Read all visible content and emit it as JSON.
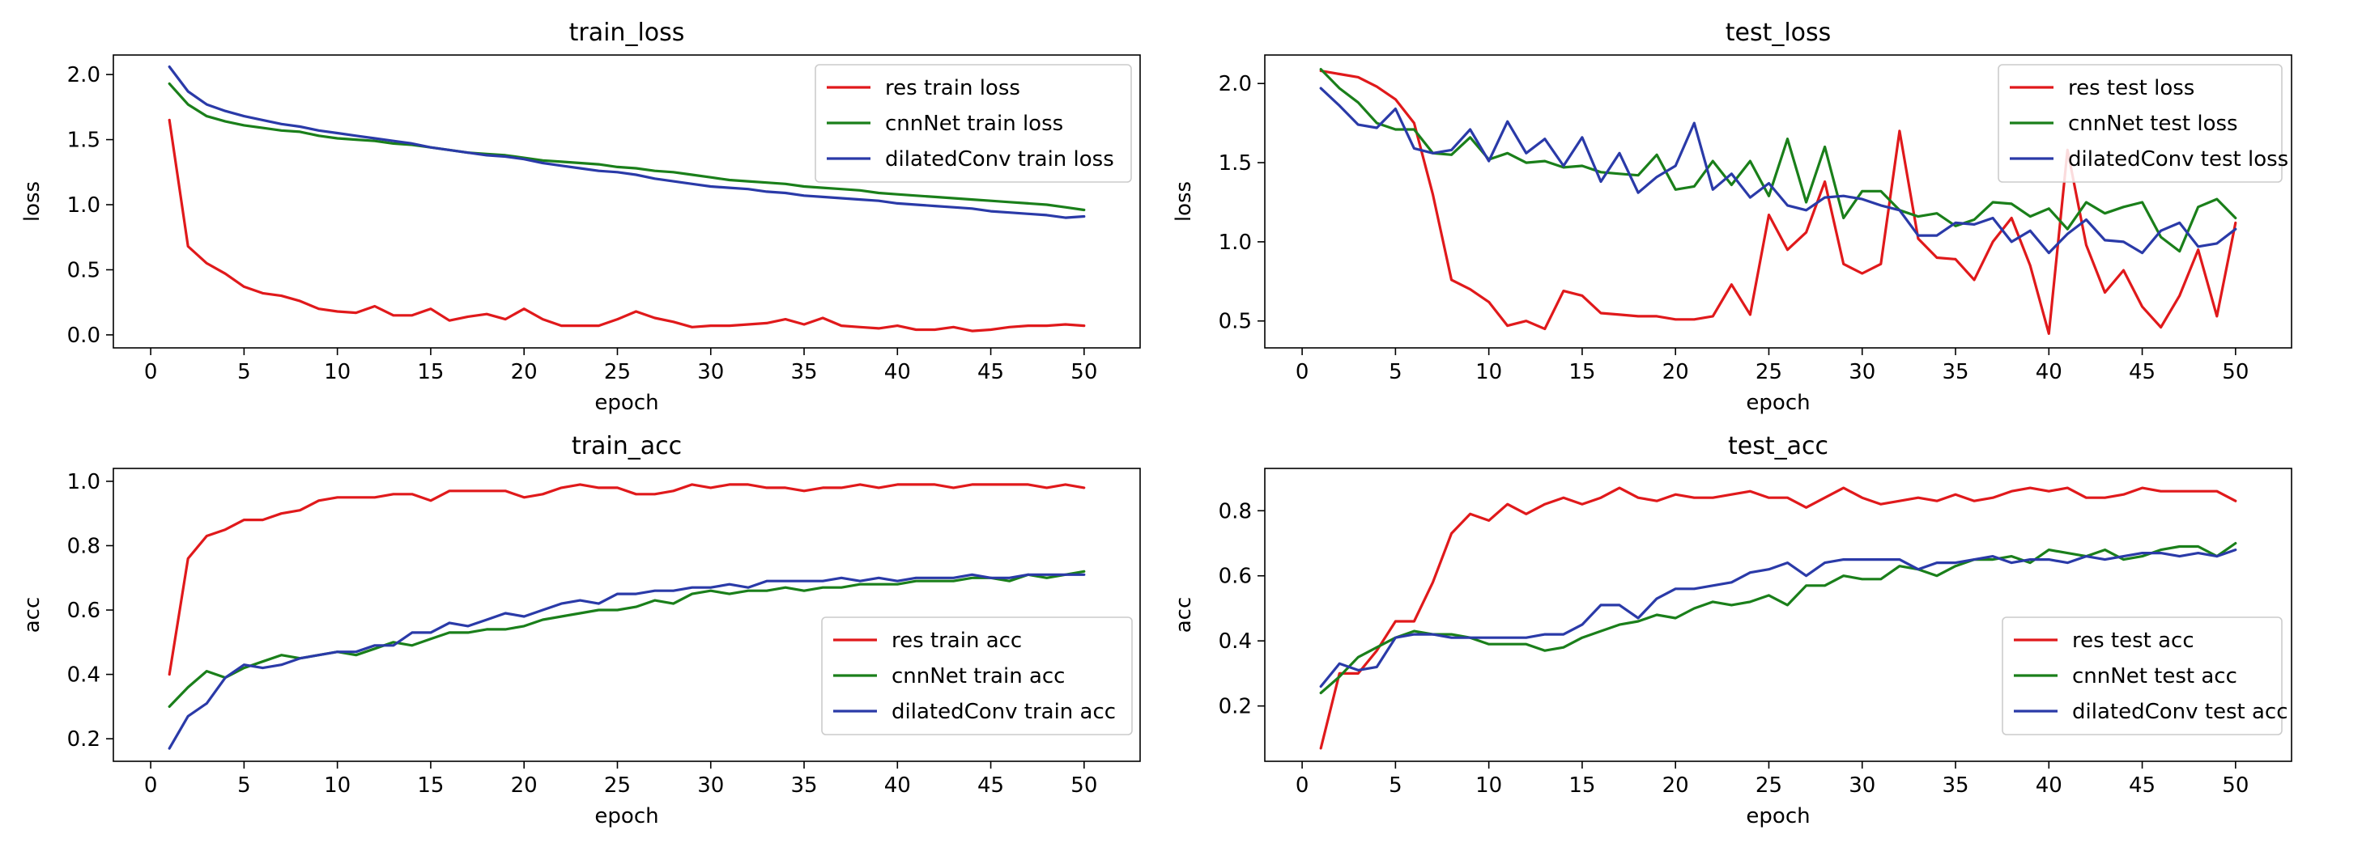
{
  "figure": {
    "panels": [
      "train_loss",
      "test_loss",
      "train_acc",
      "test_acc"
    ]
  },
  "colors": {
    "res": "#e0191b",
    "cnnNet": "#1a7f1a",
    "dilatedConv": "#2a3aa8",
    "axes": "#000000",
    "legend_border": "#cccccc"
  },
  "chart_data": [
    {
      "id": "train_loss",
      "type": "line",
      "title": "train_loss",
      "xlabel": "epoch",
      "ylabel": "loss",
      "xlim": [
        -2.0,
        53.0
      ],
      "ylim": [
        -0.1,
        2.15
      ],
      "xticks": [
        0,
        5,
        10,
        15,
        20,
        25,
        30,
        35,
        40,
        45,
        50
      ],
      "yticks": [
        0.0,
        0.5,
        1.0,
        1.5,
        2.0
      ],
      "ytick_labels": [
        "0.0",
        "0.5",
        "1.0",
        "1.5",
        "2.0"
      ],
      "grid": false,
      "legend_position": "upper right",
      "x": [
        1,
        2,
        3,
        4,
        5,
        6,
        7,
        8,
        9,
        10,
        11,
        12,
        13,
        14,
        15,
        16,
        17,
        18,
        19,
        20,
        21,
        22,
        23,
        24,
        25,
        26,
        27,
        28,
        29,
        30,
        31,
        32,
        33,
        34,
        35,
        36,
        37,
        38,
        39,
        40,
        41,
        42,
        43,
        44,
        45,
        46,
        47,
        48,
        49,
        50
      ],
      "series": [
        {
          "name": "res train loss",
          "color_key": "res",
          "values": [
            1.65,
            0.68,
            0.55,
            0.47,
            0.37,
            0.32,
            0.3,
            0.26,
            0.2,
            0.18,
            0.17,
            0.22,
            0.15,
            0.15,
            0.2,
            0.11,
            0.14,
            0.16,
            0.12,
            0.2,
            0.12,
            0.07,
            0.07,
            0.07,
            0.12,
            0.18,
            0.13,
            0.1,
            0.06,
            0.07,
            0.07,
            0.08,
            0.09,
            0.12,
            0.08,
            0.13,
            0.07,
            0.06,
            0.05,
            0.07,
            0.04,
            0.04,
            0.06,
            0.03,
            0.04,
            0.06,
            0.07,
            0.07,
            0.08,
            0.07
          ]
        },
        {
          "name": "cnnNet train loss",
          "color_key": "cnnNet",
          "values": [
            1.93,
            1.77,
            1.68,
            1.64,
            1.61,
            1.59,
            1.57,
            1.56,
            1.53,
            1.51,
            1.5,
            1.49,
            1.47,
            1.46,
            1.44,
            1.42,
            1.4,
            1.39,
            1.38,
            1.36,
            1.34,
            1.33,
            1.32,
            1.31,
            1.29,
            1.28,
            1.26,
            1.25,
            1.23,
            1.21,
            1.19,
            1.18,
            1.17,
            1.16,
            1.14,
            1.13,
            1.12,
            1.11,
            1.09,
            1.08,
            1.07,
            1.06,
            1.05,
            1.04,
            1.03,
            1.02,
            1.01,
            1.0,
            0.98,
            0.96
          ]
        },
        {
          "name": "dilatedConv train loss",
          "color_key": "dilatedConv",
          "values": [
            2.06,
            1.87,
            1.77,
            1.72,
            1.68,
            1.65,
            1.62,
            1.6,
            1.57,
            1.55,
            1.53,
            1.51,
            1.49,
            1.47,
            1.44,
            1.42,
            1.4,
            1.38,
            1.37,
            1.35,
            1.32,
            1.3,
            1.28,
            1.26,
            1.25,
            1.23,
            1.2,
            1.18,
            1.16,
            1.14,
            1.13,
            1.12,
            1.1,
            1.09,
            1.07,
            1.06,
            1.05,
            1.04,
            1.03,
            1.01,
            1.0,
            0.99,
            0.98,
            0.97,
            0.95,
            0.94,
            0.93,
            0.92,
            0.9,
            0.91
          ]
        }
      ]
    },
    {
      "id": "test_loss",
      "type": "line",
      "title": "test_loss",
      "xlabel": "epoch",
      "ylabel": "loss",
      "xlim": [
        -2.0,
        53.0
      ],
      "ylim": [
        0.33,
        2.18
      ],
      "xticks": [
        0,
        5,
        10,
        15,
        20,
        25,
        30,
        35,
        40,
        45,
        50
      ],
      "yticks": [
        0.5,
        1.0,
        1.5,
        2.0
      ],
      "ytick_labels": [
        "0.5",
        "1.0",
        "1.5",
        "2.0"
      ],
      "grid": false,
      "legend_position": "upper right",
      "x": [
        1,
        2,
        3,
        4,
        5,
        6,
        7,
        8,
        9,
        10,
        11,
        12,
        13,
        14,
        15,
        16,
        17,
        18,
        19,
        20,
        21,
        22,
        23,
        24,
        25,
        26,
        27,
        28,
        29,
        30,
        31,
        32,
        33,
        34,
        35,
        36,
        37,
        38,
        39,
        40,
        41,
        42,
        43,
        44,
        45,
        46,
        47,
        48,
        49,
        50
      ],
      "series": [
        {
          "name": "res test loss",
          "color_key": "res",
          "values": [
            2.08,
            2.06,
            2.04,
            1.98,
            1.9,
            1.75,
            1.3,
            0.76,
            0.7,
            0.62,
            0.47,
            0.5,
            0.45,
            0.69,
            0.66,
            0.55,
            0.54,
            0.53,
            0.53,
            0.51,
            0.51,
            0.53,
            0.73,
            0.54,
            1.17,
            0.95,
            1.06,
            1.38,
            0.86,
            0.8,
            0.86,
            1.7,
            1.02,
            0.9,
            0.89,
            0.76,
            1.0,
            1.15,
            0.85,
            0.42,
            1.58,
            0.98,
            0.68,
            0.82,
            0.59,
            0.46,
            0.66,
            0.95,
            0.53,
            1.12
          ]
        },
        {
          "name": "cnnNet test loss",
          "color_key": "cnnNet",
          "values": [
            2.09,
            1.97,
            1.88,
            1.75,
            1.71,
            1.71,
            1.56,
            1.55,
            1.66,
            1.52,
            1.56,
            1.5,
            1.51,
            1.47,
            1.48,
            1.44,
            1.43,
            1.42,
            1.55,
            1.33,
            1.35,
            1.51,
            1.36,
            1.51,
            1.29,
            1.65,
            1.25,
            1.6,
            1.15,
            1.32,
            1.32,
            1.2,
            1.16,
            1.18,
            1.1,
            1.14,
            1.25,
            1.24,
            1.16,
            1.21,
            1.08,
            1.25,
            1.18,
            1.22,
            1.25,
            1.03,
            0.94,
            1.22,
            1.27,
            1.15
          ]
        },
        {
          "name": "dilatedConv test loss",
          "color_key": "dilatedConv",
          "values": [
            1.97,
            1.86,
            1.74,
            1.72,
            1.84,
            1.59,
            1.56,
            1.58,
            1.71,
            1.51,
            1.76,
            1.56,
            1.65,
            1.48,
            1.66,
            1.38,
            1.56,
            1.31,
            1.41,
            1.48,
            1.75,
            1.33,
            1.43,
            1.28,
            1.37,
            1.23,
            1.2,
            1.28,
            1.29,
            1.27,
            1.23,
            1.2,
            1.04,
            1.04,
            1.12,
            1.11,
            1.15,
            1.0,
            1.07,
            0.93,
            1.05,
            1.14,
            1.01,
            1.0,
            0.93,
            1.07,
            1.12,
            0.97,
            0.99,
            1.08
          ]
        }
      ]
    },
    {
      "id": "train_acc",
      "type": "line",
      "title": "train_acc",
      "xlabel": "epoch",
      "ylabel": "acc",
      "xlim": [
        -2.0,
        53.0
      ],
      "ylim": [
        0.13,
        1.04
      ],
      "xticks": [
        0,
        5,
        10,
        15,
        20,
        25,
        30,
        35,
        40,
        45,
        50
      ],
      "yticks": [
        0.2,
        0.4,
        0.6,
        0.8,
        1.0
      ],
      "ytick_labels": [
        "0.2",
        "0.4",
        "0.6",
        "0.8",
        "1.0"
      ],
      "grid": false,
      "legend_position": "lower right",
      "x": [
        1,
        2,
        3,
        4,
        5,
        6,
        7,
        8,
        9,
        10,
        11,
        12,
        13,
        14,
        15,
        16,
        17,
        18,
        19,
        20,
        21,
        22,
        23,
        24,
        25,
        26,
        27,
        28,
        29,
        30,
        31,
        32,
        33,
        34,
        35,
        36,
        37,
        38,
        39,
        40,
        41,
        42,
        43,
        44,
        45,
        46,
        47,
        48,
        49,
        50
      ],
      "series": [
        {
          "name": "res train acc",
          "color_key": "res",
          "values": [
            0.4,
            0.76,
            0.83,
            0.85,
            0.88,
            0.88,
            0.9,
            0.91,
            0.94,
            0.95,
            0.95,
            0.95,
            0.96,
            0.96,
            0.94,
            0.97,
            0.97,
            0.97,
            0.97,
            0.95,
            0.96,
            0.98,
            0.99,
            0.98,
            0.98,
            0.96,
            0.96,
            0.97,
            0.99,
            0.98,
            0.99,
            0.99,
            0.98,
            0.98,
            0.97,
            0.98,
            0.98,
            0.99,
            0.98,
            0.99,
            0.99,
            0.99,
            0.98,
            0.99,
            0.99,
            0.99,
            0.99,
            0.98,
            0.99,
            0.98
          ]
        },
        {
          "name": "cnnNet train acc",
          "color_key": "cnnNet",
          "values": [
            0.3,
            0.36,
            0.41,
            0.39,
            0.42,
            0.44,
            0.46,
            0.45,
            0.46,
            0.47,
            0.46,
            0.48,
            0.5,
            0.49,
            0.51,
            0.53,
            0.53,
            0.54,
            0.54,
            0.55,
            0.57,
            0.58,
            0.59,
            0.6,
            0.6,
            0.61,
            0.63,
            0.62,
            0.65,
            0.66,
            0.65,
            0.66,
            0.66,
            0.67,
            0.66,
            0.67,
            0.67,
            0.68,
            0.68,
            0.68,
            0.69,
            0.69,
            0.69,
            0.7,
            0.7,
            0.69,
            0.71,
            0.7,
            0.71,
            0.72
          ]
        },
        {
          "name": "dilatedConv train acc",
          "color_key": "dilatedConv",
          "values": [
            0.17,
            0.27,
            0.31,
            0.39,
            0.43,
            0.42,
            0.43,
            0.45,
            0.46,
            0.47,
            0.47,
            0.49,
            0.49,
            0.53,
            0.53,
            0.56,
            0.55,
            0.57,
            0.59,
            0.58,
            0.6,
            0.62,
            0.63,
            0.62,
            0.65,
            0.65,
            0.66,
            0.66,
            0.67,
            0.67,
            0.68,
            0.67,
            0.69,
            0.69,
            0.69,
            0.69,
            0.7,
            0.69,
            0.7,
            0.69,
            0.7,
            0.7,
            0.7,
            0.71,
            0.7,
            0.7,
            0.71,
            0.71,
            0.71,
            0.71
          ]
        }
      ]
    },
    {
      "id": "test_acc",
      "type": "line",
      "title": "test_acc",
      "xlabel": "epoch",
      "ylabel": "acc",
      "xlim": [
        -2.0,
        53.0
      ],
      "ylim": [
        0.03,
        0.93
      ],
      "xticks": [
        0,
        5,
        10,
        15,
        20,
        25,
        30,
        35,
        40,
        45,
        50
      ],
      "yticks": [
        0.2,
        0.4,
        0.6,
        0.8
      ],
      "ytick_labels": [
        "0.2",
        "0.4",
        "0.6",
        "0.8"
      ],
      "grid": false,
      "legend_position": "lower right",
      "x": [
        1,
        2,
        3,
        4,
        5,
        6,
        7,
        8,
        9,
        10,
        11,
        12,
        13,
        14,
        15,
        16,
        17,
        18,
        19,
        20,
        21,
        22,
        23,
        24,
        25,
        26,
        27,
        28,
        29,
        30,
        31,
        32,
        33,
        34,
        35,
        36,
        37,
        38,
        39,
        40,
        41,
        42,
        43,
        44,
        45,
        46,
        47,
        48,
        49,
        50
      ],
      "series": [
        {
          "name": "res test acc",
          "color_key": "res",
          "values": [
            0.07,
            0.3,
            0.3,
            0.37,
            0.46,
            0.46,
            0.58,
            0.73,
            0.79,
            0.77,
            0.82,
            0.79,
            0.82,
            0.84,
            0.82,
            0.84,
            0.87,
            0.84,
            0.83,
            0.85,
            0.84,
            0.84,
            0.85,
            0.86,
            0.84,
            0.84,
            0.81,
            0.84,
            0.87,
            0.84,
            0.82,
            0.83,
            0.84,
            0.83,
            0.85,
            0.83,
            0.84,
            0.86,
            0.87,
            0.86,
            0.87,
            0.84,
            0.84,
            0.85,
            0.87,
            0.86,
            0.86,
            0.86,
            0.86,
            0.83
          ]
        },
        {
          "name": "cnnNet test acc",
          "color_key": "cnnNet",
          "values": [
            0.24,
            0.29,
            0.35,
            0.38,
            0.41,
            0.43,
            0.42,
            0.42,
            0.41,
            0.39,
            0.39,
            0.39,
            0.37,
            0.38,
            0.41,
            0.43,
            0.45,
            0.46,
            0.48,
            0.47,
            0.5,
            0.52,
            0.51,
            0.52,
            0.54,
            0.51,
            0.57,
            0.57,
            0.6,
            0.59,
            0.59,
            0.63,
            0.62,
            0.6,
            0.63,
            0.65,
            0.65,
            0.66,
            0.64,
            0.68,
            0.67,
            0.66,
            0.68,
            0.65,
            0.66,
            0.68,
            0.69,
            0.69,
            0.66,
            0.7
          ]
        },
        {
          "name": "dilatedConv test acc",
          "color_key": "dilatedConv",
          "values": [
            0.26,
            0.33,
            0.31,
            0.32,
            0.41,
            0.42,
            0.42,
            0.41,
            0.41,
            0.41,
            0.41,
            0.41,
            0.42,
            0.42,
            0.45,
            0.51,
            0.51,
            0.47,
            0.53,
            0.56,
            0.56,
            0.57,
            0.58,
            0.61,
            0.62,
            0.64,
            0.6,
            0.64,
            0.65,
            0.65,
            0.65,
            0.65,
            0.62,
            0.64,
            0.64,
            0.65,
            0.66,
            0.64,
            0.65,
            0.65,
            0.64,
            0.66,
            0.65,
            0.66,
            0.67,
            0.67,
            0.66,
            0.67,
            0.66,
            0.68
          ]
        }
      ]
    }
  ]
}
